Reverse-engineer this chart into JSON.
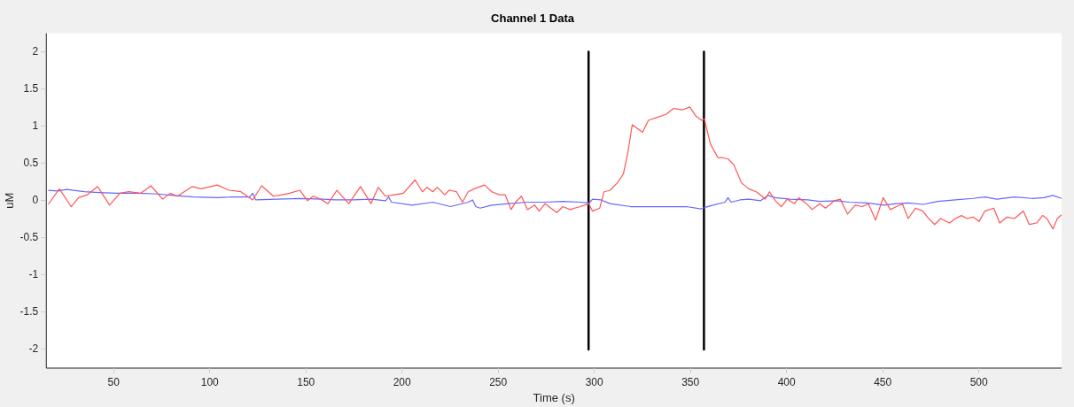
{
  "chart_data": {
    "type": "line",
    "title": "Channel 1 Data",
    "xlabel": "Time (s)",
    "ylabel": "uM",
    "xlim": [
      15,
      543
    ],
    "ylim": [
      -2.25,
      2.25
    ],
    "xticks": [
      50,
      100,
      150,
      200,
      250,
      300,
      350,
      400,
      450,
      500
    ],
    "yticks": [
      -2,
      -1.5,
      -1,
      -0.5,
      0,
      0.5,
      1,
      1.5,
      2
    ],
    "grid": false,
    "legend": false,
    "marker": "none",
    "line_style": "solid",
    "series": [
      {
        "color": "#ff5555",
        "x": [
          16,
          21.8,
          27.9,
          31.8,
          36.4,
          41.7,
          47.9,
          53.3,
          57.9,
          64,
          69.4,
          75.5,
          79.4,
          83.2,
          90.9,
          95.5,
          103.9,
          110,
          116.2,
          122.3,
          127,
          133.1,
          137.7,
          141.5,
          146.9,
          150.8,
          153.8,
          157.7,
          161.5,
          166.1,
          172.3,
          178.4,
          183.8,
          187.6,
          191.4,
          196,
          200.7,
          206.8,
          210.6,
          213,
          216,
          218.3,
          222.2,
          224.5,
          228.3,
          231.4,
          234.4,
          237.5,
          242.9,
          246.7,
          250.6,
          253.6,
          256.7,
          259,
          262.1,
          265.2,
          269,
          271.3,
          274.4,
          277.4,
          280.5,
          283.6,
          287.4,
          289.7,
          292.8,
          297.1,
          299,
          302.8,
          305.1,
          308.2,
          312,
          315.1,
          317.4,
          319.7,
          325.1,
          328.1,
          332.7,
          337.3,
          341.2,
          345.8,
          349.6,
          352.7,
          355.8,
          357.3,
          358.1,
          360.4,
          364.2,
          366.5,
          369.6,
          372.6,
          376.5,
          380.3,
          384.2,
          387.2,
          388.8,
          391.1,
          394.1,
          397.2,
          400.3,
          404.1,
          406.4,
          410.3,
          413.3,
          417.2,
          420.2,
          424.8,
          427.9,
          431.7,
          435.6,
          439.4,
          442.5,
          446.3,
          450.2,
          454,
          457.1,
          460.2,
          463.2,
          467.1,
          470.9,
          473.2,
          477,
          480.1,
          484.7,
          487.8,
          490.9,
          493.9,
          497,
          500.1,
          503.1,
          507.7,
          510.8,
          514.7,
          518.5,
          523.1,
          526.2,
          530,
          533.1,
          535.4,
          538.5,
          540.8,
          543
        ],
        "values": [
          -0.05,
          0.16,
          -0.08,
          0.04,
          0.08,
          0.19,
          -0.06,
          0.1,
          0.12,
          0.1,
          0.2,
          0.02,
          0.1,
          0.06,
          0.19,
          0.16,
          0.21,
          0.14,
          0.12,
          0.01,
          0.2,
          0.06,
          0.08,
          0.1,
          0.14,
          0,
          0.06,
          0.02,
          -0.04,
          0.14,
          -0.04,
          0.19,
          -0.04,
          0.18,
          0.06,
          0.08,
          0.1,
          0.28,
          0.12,
          0.18,
          0.12,
          0.18,
          0.08,
          0.14,
          0.12,
          -0.02,
          0.12,
          0.16,
          0.21,
          0.12,
          0.08,
          0.08,
          -0.12,
          -0.02,
          0.06,
          -0.12,
          -0.06,
          -0.14,
          -0.04,
          -0.1,
          -0.16,
          -0.08,
          -0.12,
          -0.1,
          -0.08,
          -0.04,
          -0.14,
          -0.1,
          0.12,
          0.14,
          0.24,
          0.36,
          0.64,
          1.02,
          0.92,
          1.08,
          1.12,
          1.16,
          1.24,
          1.22,
          1.26,
          1.14,
          1.08,
          1.1,
          1,
          0.76,
          0.58,
          0.58,
          0.56,
          0.48,
          0.24,
          0.16,
          0.12,
          0.06,
          0.02,
          0.12,
          0,
          -0.08,
          0.02,
          -0.04,
          0.04,
          -0.04,
          -0.12,
          -0.04,
          -0.1,
          0,
          0.02,
          -0.18,
          -0.06,
          -0.08,
          -0.04,
          -0.26,
          0.04,
          -0.12,
          -0.08,
          -0.04,
          -0.24,
          -0.1,
          -0.14,
          -0.22,
          -0.32,
          -0.24,
          -0.3,
          -0.24,
          -0.2,
          -0.24,
          -0.22,
          -0.28,
          -0.14,
          -0.1,
          -0.3,
          -0.22,
          -0.24,
          -0.14,
          -0.32,
          -0.3,
          -0.2,
          -0.24,
          -0.38,
          -0.24,
          -0.19
        ]
      },
      {
        "color": "#6666ff",
        "x": [
          16,
          21,
          25.6,
          34.8,
          42.5,
          51.7,
          62.5,
          73.2,
          80.9,
          91.6,
          103.9,
          111.6,
          120.8,
          122.3,
          123.9,
          134.6,
          146.9,
          159.2,
          165.3,
          174.5,
          183.8,
          191.5,
          193,
          194.5,
          205.3,
          216,
          225.2,
          234.4,
          236.7,
          238.3,
          240.6,
          246.7,
          255.9,
          265.2,
          274.4,
          283.6,
          292.8,
          297.4,
          299,
          303.5,
          308.1,
          318.9,
          329.6,
          338.8,
          348,
          355.4,
          360.3,
          368,
          369.5,
          371.1,
          375.7,
          380.3,
          386.5,
          390.3,
          394.1,
          401.8,
          411,
          417.2,
          426.4,
          432.5,
          441.7,
          450.9,
          457.1,
          463.2,
          470.9,
          478.6,
          487.8,
          497,
          503.1,
          509.3,
          518.5,
          527.7,
          533.8,
          538.5,
          543
        ],
        "values": [
          0.14,
          0.13,
          0.15,
          0.12,
          0.11,
          0.1,
          0.1,
          0.09,
          0.07,
          0.05,
          0.04,
          0.05,
          0.05,
          0.1,
          0.01,
          0.02,
          0.03,
          0.02,
          0.01,
          0.01,
          0.02,
          0,
          0.05,
          -0.02,
          -0.06,
          -0.02,
          -0.08,
          -0.02,
          0.01,
          -0.08,
          -0.1,
          -0.06,
          -0.04,
          -0.02,
          -0.02,
          -0.01,
          -0.02,
          -0.03,
          0.02,
          0.01,
          -0.04,
          -0.08,
          -0.08,
          -0.08,
          -0.08,
          -0.11,
          -0.07,
          -0.02,
          0.04,
          -0.02,
          0.01,
          0.02,
          0,
          0.07,
          0.04,
          0.02,
          0.01,
          -0.01,
          0,
          -0.02,
          -0.03,
          -0.06,
          -0.04,
          -0.03,
          -0.05,
          -0.01,
          0.01,
          0.03,
          0.05,
          0.02,
          0.05,
          0.03,
          0.04,
          0.07,
          0.03
        ]
      },
      {
        "color": "#000000",
        "x": [
          297,
          297
        ],
        "values": [
          2,
          -2
        ]
      },
      {
        "color": "#000000",
        "x": [
          357,
          357
        ],
        "values": [
          2,
          -2
        ]
      }
    ]
  }
}
